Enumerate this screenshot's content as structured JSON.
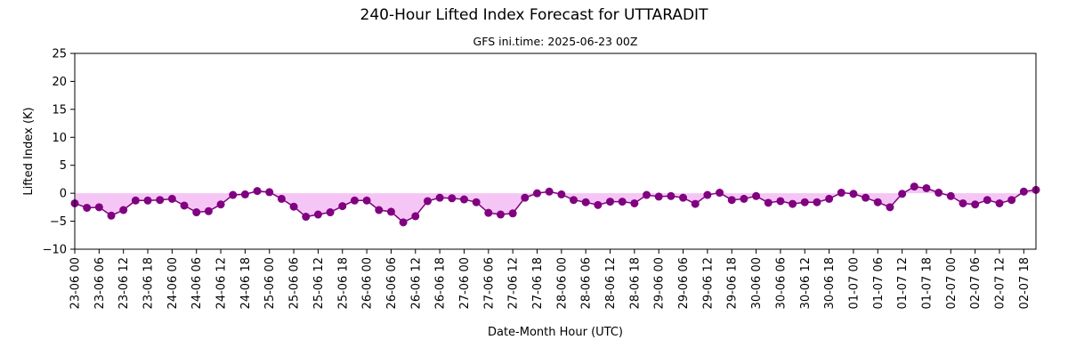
{
  "chart_data": {
    "type": "line",
    "title": "240-Hour Lifted Index Forecast for UTTARADIT",
    "subtitle": "GFS ini.time: 2025-06-23 00Z",
    "xlabel": "Date-Month Hour (UTC)",
    "ylabel": "Lifted Index (K)",
    "ylim": [
      -10,
      25
    ],
    "yticks": [
      -10,
      -5,
      0,
      5,
      10,
      15,
      20,
      25
    ],
    "grid": false,
    "line_color": "#800080",
    "fill_color": "#f5c6f5",
    "x_tick_labels": [
      "23-06 00",
      "23-06 06",
      "23-06 12",
      "23-06 18",
      "24-06 00",
      "24-06 06",
      "24-06 12",
      "24-06 18",
      "25-06 00",
      "25-06 06",
      "25-06 12",
      "25-06 18",
      "26-06 00",
      "26-06 06",
      "26-06 12",
      "26-06 18",
      "27-06 00",
      "27-06 06",
      "27-06 12",
      "27-06 18",
      "28-06 00",
      "28-06 06",
      "28-06 12",
      "28-06 18",
      "29-06 00",
      "29-06 06",
      "29-06 12",
      "29-06 18",
      "30-06 00",
      "30-06 06",
      "30-06 12",
      "30-06 18",
      "01-07 00",
      "01-07 06",
      "01-07 12",
      "01-07 18",
      "02-07 00",
      "02-07 06",
      "02-07 12",
      "02-07 18"
    ],
    "series": [
      {
        "values": [
          -1.8,
          -2.6,
          -2.5,
          -4.0,
          -3.0,
          -1.3,
          -1.3,
          -1.2,
          -1.0,
          -2.2,
          -3.4,
          -3.2,
          -2.0,
          -0.3,
          -0.2,
          0.4,
          0.2,
          -1.0,
          -2.4,
          -4.2,
          -3.8,
          -3.4,
          -2.3,
          -1.3,
          -1.3,
          -3.0,
          -3.3,
          -5.2,
          -4.1,
          -1.4,
          -0.8,
          -0.9,
          -1.1,
          -1.6,
          -3.5,
          -3.8,
          -3.6,
          -0.8,
          0.0,
          0.3,
          -0.2,
          -1.2,
          -1.6,
          -2.1,
          -1.5,
          -1.5,
          -1.8,
          -0.3,
          -0.6,
          -0.5,
          -0.8,
          -1.9,
          -0.3,
          0.1,
          -1.2,
          -1.0,
          -0.5,
          -1.7,
          -1.4,
          -1.9,
          -1.6,
          -1.6,
          -1.0,
          0.1,
          -0.1,
          -0.8,
          -1.6,
          -2.5,
          -0.1,
          1.2,
          0.9,
          0.1,
          -0.5,
          -1.8,
          -2.0,
          -1.2,
          -1.8,
          -1.2,
          0.3,
          0.6
        ]
      }
    ]
  }
}
